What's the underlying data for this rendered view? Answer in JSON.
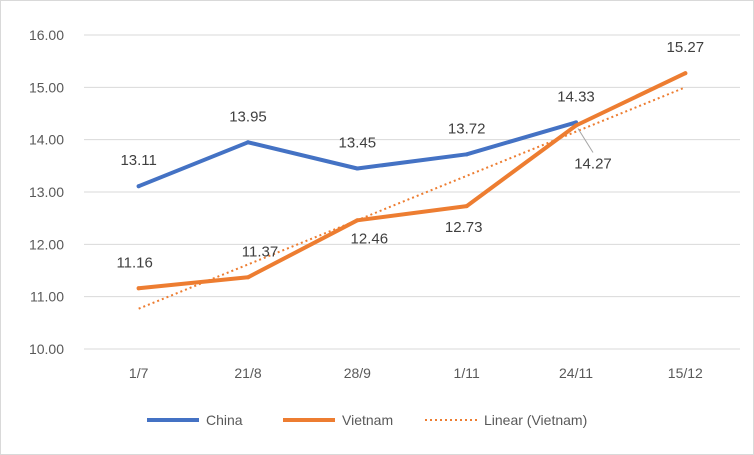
{
  "chart_data": {
    "type": "line",
    "title": "",
    "xlabel": "",
    "ylabel": "",
    "categories": [
      "1/7",
      "21/8",
      "28/9",
      "1/11",
      "24/11",
      "15/12"
    ],
    "ylim": [
      10.0,
      16.0
    ],
    "yticks": [
      "10.00",
      "11.00",
      "12.00",
      "13.00",
      "14.00",
      "15.00",
      "16.00"
    ],
    "grid": true,
    "legend_position": "bottom",
    "series": [
      {
        "name": "China",
        "color": "#4472c4",
        "values": [
          13.11,
          13.95,
          13.45,
          13.72,
          14.33,
          null
        ],
        "labels": [
          "13.11",
          "13.95",
          "13.45",
          "13.72",
          "14.33",
          ""
        ]
      },
      {
        "name": "Vietnam",
        "color": "#ed7d31",
        "values": [
          11.16,
          11.37,
          12.46,
          12.73,
          14.27,
          15.27
        ],
        "labels": [
          "11.16",
          "11.37",
          "12.46",
          "12.73",
          "14.27",
          "15.27"
        ]
      }
    ],
    "trendline": {
      "name": "Linear (Vietnam)",
      "color": "#ed7d31",
      "style": "dotted",
      "of_series": "Vietnam",
      "values": [
        10.77,
        15.0
      ]
    }
  }
}
